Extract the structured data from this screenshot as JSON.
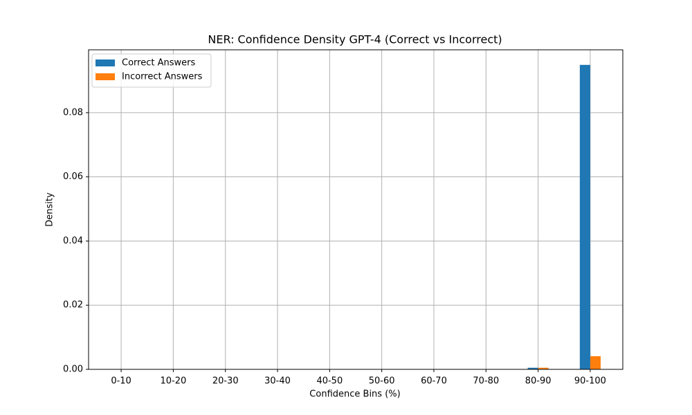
{
  "chart_data": {
    "type": "bar",
    "title": "NER: Confidence Density GPT-4 (Correct vs Incorrect)",
    "x_label": "Confidence Bins (%)",
    "y_label": "Density",
    "categories": [
      "0-10",
      "10-20",
      "20-30",
      "30-40",
      "40-50",
      "50-60",
      "60-70",
      "70-80",
      "80-90",
      "90-100"
    ],
    "series": [
      {
        "name": "Correct Answers",
        "color": "#1f77b4",
        "values": [
          0,
          0,
          0,
          0,
          0,
          0,
          0,
          0,
          0.0005,
          0.0949
        ]
      },
      {
        "name": "Incorrect Answers",
        "color": "#ff7f0e",
        "values": [
          0,
          0,
          0,
          0,
          0,
          0,
          0,
          0,
          0.0005,
          0.0041
        ]
      }
    ],
    "ylim": [
      0,
      0.0996
    ],
    "yticks": [
      {
        "value": 0,
        "label": "0.00"
      },
      {
        "value": 0.02,
        "label": "0.02"
      },
      {
        "value": 0.04,
        "label": "0.04"
      },
      {
        "value": 0.06,
        "label": "0.06"
      },
      {
        "value": 0.08,
        "label": "0.08"
      }
    ],
    "grid": true,
    "legend": "upper-left"
  }
}
